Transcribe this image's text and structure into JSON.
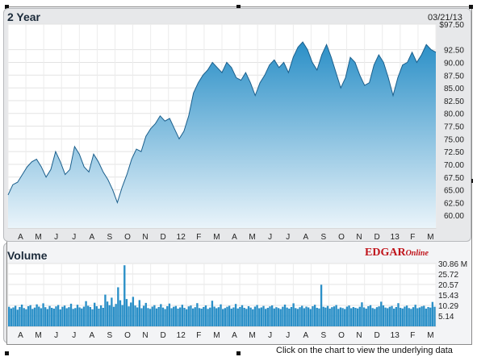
{
  "price_panel": {
    "title": "2 Year",
    "date": "03/21/13"
  },
  "volume_panel": {
    "title": "Volume",
    "brand_main": "EDGAR",
    "brand_sub": "Online"
  },
  "footer": {
    "text": "Click on the chart to view the underlying data"
  },
  "colors": {
    "area_top": "#2a8fc7",
    "area_bottom": "#eaf4fa",
    "line": "#1b5f8c",
    "volume_bar": "#2a8fc7"
  },
  "chart_data": [
    {
      "type": "area",
      "title": "2 Year",
      "x_labels": [
        "A",
        "M",
        "J",
        "J",
        "A",
        "S",
        "O",
        "N",
        "D",
        "12",
        "F",
        "M",
        "A",
        "M",
        "J",
        "J",
        "A",
        "S",
        "O",
        "N",
        "D",
        "13",
        "F",
        "M"
      ],
      "y_ticks": [
        "$97.50",
        "92.50",
        "90.00",
        "87.50",
        "85.00",
        "82.50",
        "80.00",
        "77.50",
        "75.00",
        "72.50",
        "70.00",
        "67.50",
        "65.00",
        "62.50",
        "60.00"
      ],
      "ylim": [
        57.5,
        97.5
      ],
      "grid": true,
      "values": [
        64.0,
        66.0,
        66.5,
        68.0,
        69.5,
        70.5,
        71.0,
        69.5,
        67.5,
        69.0,
        72.5,
        70.5,
        68.0,
        69.0,
        73.5,
        72.0,
        69.5,
        68.5,
        72.0,
        70.5,
        68.5,
        67.0,
        65.0,
        62.5,
        65.5,
        68.0,
        71.0,
        73.0,
        72.5,
        75.5,
        77.0,
        78.0,
        79.5,
        78.5,
        79.0,
        77.0,
        75.0,
        76.5,
        79.5,
        84.0,
        86.0,
        87.5,
        88.5,
        90.0,
        89.0,
        88.0,
        90.0,
        89.0,
        87.0,
        86.5,
        88.0,
        86.0,
        83.5,
        86.0,
        87.5,
        89.5,
        90.5,
        89.0,
        90.0,
        88.0,
        91.0,
        93.0,
        94.0,
        92.5,
        90.0,
        88.5,
        91.5,
        93.5,
        91.0,
        88.0,
        85.0,
        87.0,
        91.0,
        90.0,
        87.5,
        85.5,
        86.0,
        89.5,
        91.5,
        90.0,
        87.0,
        83.5,
        87.0,
        89.5,
        90.0,
        92.0,
        90.0,
        91.5,
        93.5,
        92.5,
        92.0
      ]
    },
    {
      "type": "bar",
      "title": "Volume",
      "x_labels": [
        "A",
        "M",
        "J",
        "J",
        "A",
        "S",
        "O",
        "N",
        "D",
        "12",
        "F",
        "M",
        "A",
        "M",
        "J",
        "J",
        "A",
        "S",
        "O",
        "N",
        "D",
        "13",
        "F",
        "M"
      ],
      "y_ticks": [
        "30.86 M",
        "25.72",
        "20.57",
        "15.43",
        "10.29",
        "5.14"
      ],
      "ylim": [
        0,
        30.86
      ],
      "values": [
        9.6,
        8.8,
        9.3,
        10.1,
        8.2,
        9.5,
        10.7,
        9.0,
        8.4,
        9.9,
        10.4,
        8.6,
        9.2,
        10.8,
        9.7,
        8.9,
        11.3,
        9.4,
        8.5,
        10.0,
        9.1,
        8.7,
        9.8,
        10.5,
        8.3,
        9.6,
        10.2,
        8.9,
        9.4,
        11.1,
        8.6,
        9.0,
        10.6,
        9.3,
        8.8,
        9.7,
        12.4,
        10.1,
        9.5,
        8.4,
        11.6,
        9.9,
        8.7,
        10.3,
        9.1,
        15.6,
        12.2,
        10.4,
        14.1,
        9.6,
        11.0,
        19.2,
        12.8,
        10.5,
        30.0,
        13.4,
        9.8,
        11.7,
        14.5,
        10.2,
        9.3,
        12.9,
        8.9,
        10.1,
        11.5,
        9.0,
        8.6,
        9.7,
        10.4,
        8.8,
        9.5,
        10.9,
        9.2,
        8.5,
        9.9,
        11.2,
        8.9,
        9.6,
        10.0,
        8.7,
        9.3,
        10.6,
        9.1,
        8.4,
        9.8,
        10.2,
        8.8,
        9.4,
        11.4,
        9.0,
        8.7,
        9.5,
        10.3,
        8.6,
        9.2,
        12.6,
        9.7,
        8.9,
        9.4,
        10.8,
        8.5,
        9.0,
        9.6,
        10.1,
        8.7,
        9.3,
        11.0,
        8.8,
        9.5,
        10.4,
        9.1,
        8.6,
        9.9,
        9.2,
        8.4,
        9.7,
        10.5,
        8.9,
        9.3,
        10.0,
        8.6,
        9.1,
        9.8,
        10.3,
        8.8,
        9.4,
        9.0,
        8.5,
        9.6,
        10.7,
        9.2,
        8.7,
        9.5,
        11.3,
        9.0,
        8.6,
        9.4,
        10.1,
        8.9,
        9.7,
        9.3,
        8.5,
        9.9,
        10.6,
        9.1,
        8.8,
        20.4,
        9.6,
        9.2,
        10.0,
        8.7,
        9.4,
        9.8,
        10.5,
        8.6,
        9.3,
        9.0,
        8.5,
        9.7,
        10.2,
        8.9,
        9.5,
        9.1,
        8.8,
        9.6,
        11.8,
        9.3,
        8.7,
        9.9,
        10.4,
        9.0,
        8.6,
        9.4,
        9.8,
        12.1,
        10.3,
        9.2,
        8.9,
        9.6,
        10.0,
        8.7,
        9.5,
        11.4,
        9.1,
        8.8,
        9.7,
        10.2,
        9.0,
        8.6,
        9.4,
        10.6,
        8.9,
        9.3,
        9.8,
        10.1,
        8.7,
        9.5,
        9.2,
        12.0,
        9.6
      ]
    }
  ]
}
